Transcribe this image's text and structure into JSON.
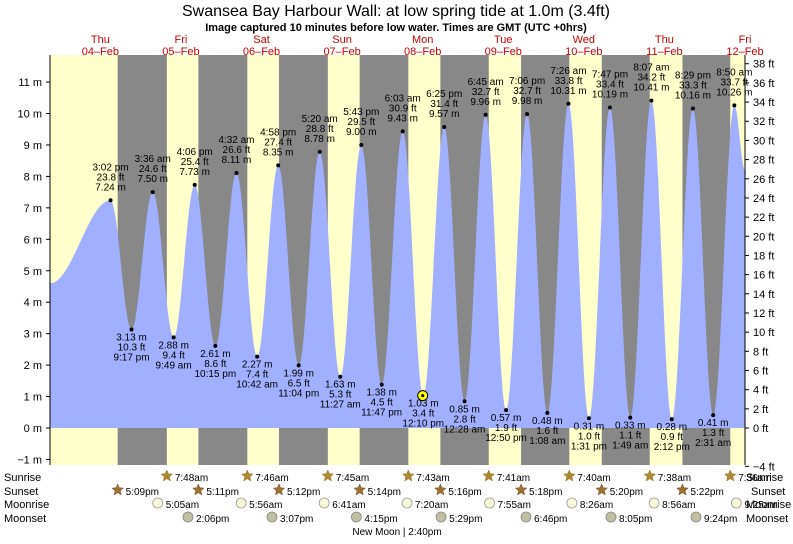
{
  "title": "Swansea Bay Harbour Wall: at low  spring tide at 1.0m (3.4ft)",
  "subtitle": "Image captured 10 minutes before low water. Times are GMT (UTC +0hrs)",
  "colors": {
    "day": "#ffffcc",
    "night": "#888888",
    "tide_fill": "#a0b0ff",
    "day_label": "#cc0000",
    "sun_icon": "#b08a30",
    "moon_icon": "#f8f8d8",
    "moonset_icon": "#c0c0a0"
  },
  "day_labels": [
    {
      "day": "Thu",
      "date": "04–Feb"
    },
    {
      "day": "Fri",
      "date": "05–Feb"
    },
    {
      "day": "Sat",
      "date": "06–Feb"
    },
    {
      "day": "Sun",
      "date": "07–Feb"
    },
    {
      "day": "Mon",
      "date": "08–Feb"
    },
    {
      "day": "Tue",
      "date": "09–Feb"
    },
    {
      "day": "Wed",
      "date": "10–Feb"
    },
    {
      "day": "Thu",
      "date": "11–Feb"
    },
    {
      "day": "Fri",
      "date": "12–Feb"
    }
  ],
  "row_labels": {
    "sunrise": "Sunrise",
    "sunset": "Sunset",
    "moonrise": "Moonrise",
    "moonset": "Moonset"
  },
  "moon_phase": "New Moon | 2:40pm",
  "chart_data": {
    "type": "area",
    "title": "Swansea Bay Harbour Wall: at low  spring tide at 1.0m (3.4ft)",
    "y_left": {
      "unit": "m",
      "ticks": [
        -1,
        0,
        1,
        2,
        3,
        4,
        5,
        6,
        7,
        8,
        9,
        10,
        11
      ],
      "tick_labels": [
        "−1 m",
        "0 m",
        "1 m",
        "2 m",
        "3 m",
        "4 m",
        "5 m",
        "6 m",
        "7 m",
        "8 m",
        "9 m",
        "10 m",
        "11 m"
      ]
    },
    "y_right": {
      "unit": "ft",
      "ticks": [
        -4,
        0,
        2,
        4,
        6,
        8,
        10,
        12,
        14,
        16,
        18,
        20,
        22,
        24,
        26,
        28,
        30,
        32,
        34,
        36,
        38
      ],
      "tick_labels": [
        "−4 ft",
        "0 ft",
        "2 ft",
        "4 ft",
        "6 ft",
        "8 ft",
        "10 ft",
        "12 ft",
        "14 ft",
        "16 ft",
        "18 ft",
        "20 ft",
        "22 ft",
        "24 ft",
        "26 ft",
        "28 ft",
        "30 ft",
        "32 ft",
        "34 ft",
        "36 ft",
        "38 ft"
      ]
    },
    "ylim_m": [
      -1.1,
      11.5
    ],
    "x_range_hours": [
      -3,
      204
    ],
    "start_height_m": 4.6,
    "end_height_m": 8.2,
    "tides": [
      {
        "type": "high",
        "t": 15.03,
        "m": 7.24,
        "ft": "23.8 ft",
        "m_label": "7.24 m",
        "time": "3:02 pm"
      },
      {
        "type": "low",
        "t": 21.28,
        "m": 3.13,
        "ft": "10.3 ft",
        "m_label": "3.13 m",
        "time": "9:17 pm"
      },
      {
        "type": "high",
        "t": 27.6,
        "m": 7.5,
        "ft": "24.6 ft",
        "m_label": "7.50 m",
        "time": "3:36 am"
      },
      {
        "type": "low",
        "t": 33.82,
        "m": 2.88,
        "ft": "9.4 ft",
        "m_label": "2.88 m",
        "time": "9:49 am"
      },
      {
        "type": "high",
        "t": 40.1,
        "m": 7.73,
        "ft": "25.4 ft",
        "m_label": "7.73 m",
        "time": "4:06 pm"
      },
      {
        "type": "low",
        "t": 46.25,
        "m": 2.61,
        "ft": "8.6 ft",
        "m_label": "2.61 m",
        "time": "10:15 pm"
      },
      {
        "type": "high",
        "t": 52.53,
        "m": 8.11,
        "ft": "26.6 ft",
        "m_label": "8.11 m",
        "time": "4:32 am"
      },
      {
        "type": "low",
        "t": 58.7,
        "m": 2.27,
        "ft": "7.4 ft",
        "m_label": "2.27 m",
        "time": "10:42 am"
      },
      {
        "type": "high",
        "t": 64.97,
        "m": 8.35,
        "ft": "27.4 ft",
        "m_label": "8.35 m",
        "time": "4:58 pm"
      },
      {
        "type": "low",
        "t": 71.07,
        "m": 1.99,
        "ft": "6.5 ft",
        "m_label": "1.99 m",
        "time": "11:04 pm"
      },
      {
        "type": "high",
        "t": 77.33,
        "m": 8.78,
        "ft": "28.8 ft",
        "m_label": "8.78 m",
        "time": "5:20 am"
      },
      {
        "type": "low",
        "t": 83.45,
        "m": 1.63,
        "ft": "5.3 ft",
        "m_label": "1.63 m",
        "time": "11:27 am"
      },
      {
        "type": "high",
        "t": 89.72,
        "m": 9.0,
        "ft": "29.5 ft",
        "m_label": "9.00 m",
        "time": "5:43 pm"
      },
      {
        "type": "low",
        "t": 95.78,
        "m": 1.38,
        "ft": "4.5 ft",
        "m_label": "1.38 m",
        "time": "11:47 pm"
      },
      {
        "type": "high",
        "t": 102.05,
        "m": 9.43,
        "ft": "30.9 ft",
        "m_label": "9.43 m",
        "time": "6:03 am"
      },
      {
        "type": "low",
        "t": 108.17,
        "m": 1.03,
        "ft": "3.4 ft",
        "m_label": "1.03 m",
        "time": "12:10 pm"
      },
      {
        "type": "high",
        "t": 114.42,
        "m": 9.57,
        "ft": "31.4 ft",
        "m_label": "9.57 m",
        "time": "6:25 pm"
      },
      {
        "type": "low",
        "t": 120.47,
        "m": 0.85,
        "ft": "2.8 ft",
        "m_label": "0.85 m",
        "time": "12:28 am"
      },
      {
        "type": "high",
        "t": 126.75,
        "m": 9.96,
        "ft": "32.7 ft",
        "m_label": "9.96 m",
        "time": "6:45 am"
      },
      {
        "type": "low",
        "t": 132.83,
        "m": 0.57,
        "ft": "1.9 ft",
        "m_label": "0.57 m",
        "time": "12:50 pm"
      },
      {
        "type": "high",
        "t": 139.1,
        "m": 9.98,
        "ft": "32.7 ft",
        "m_label": "9.98 m",
        "time": "7:06 pm"
      },
      {
        "type": "low",
        "t": 145.13,
        "m": 0.48,
        "ft": "1.6 ft",
        "m_label": "0.48 m",
        "time": "1:08 am"
      },
      {
        "type": "high",
        "t": 151.43,
        "m": 10.31,
        "ft": "33.8 ft",
        "m_label": "10.31 m",
        "time": "7:26 am"
      },
      {
        "type": "low",
        "t": 157.52,
        "m": 0.31,
        "ft": "1.0 ft",
        "m_label": "0.31 m",
        "time": "1:31 pm"
      },
      {
        "type": "high",
        "t": 163.78,
        "m": 10.19,
        "ft": "33.4 ft",
        "m_label": "10.19 m",
        "time": "7:47 pm"
      },
      {
        "type": "low",
        "t": 169.82,
        "m": 0.33,
        "ft": "1.1 ft",
        "m_label": "0.33 m",
        "time": "1:49 am"
      },
      {
        "type": "high",
        "t": 176.12,
        "m": 10.41,
        "ft": "34.2 ft",
        "m_label": "10.41 m",
        "time": "8:07 am"
      },
      {
        "type": "low",
        "t": 182.2,
        "m": 0.28,
        "ft": "0.9 ft",
        "m_label": "0.28 m",
        "time": "2:12 pm"
      },
      {
        "type": "high",
        "t": 188.48,
        "m": 10.16,
        "ft": "33.3 ft",
        "m_label": "10.16 m",
        "time": "8:29 pm"
      },
      {
        "type": "low",
        "t": 194.52,
        "m": 0.41,
        "ft": "1.3 ft",
        "m_label": "0.41 m",
        "time": "2:31 am"
      },
      {
        "type": "high",
        "t": 200.83,
        "m": 10.26,
        "ft": "33.7 ft",
        "m_label": "10.26 m",
        "time": "8:50 am"
      }
    ],
    "current": {
      "t": 108.0,
      "m": 1.03
    },
    "daylight": [
      {
        "rise_t": -3,
        "set_t": 17.15
      },
      {
        "rise_t": 31.8,
        "set_t": 41.18
      },
      {
        "rise_t": 55.77,
        "set_t": 65.2
      },
      {
        "rise_t": 79.75,
        "set_t": 89.23
      },
      {
        "rise_t": 103.72,
        "set_t": 113.27
      },
      {
        "rise_t": 127.68,
        "set_t": 137.3
      },
      {
        "rise_t": 151.67,
        "set_t": 161.33
      },
      {
        "rise_t": 175.63,
        "set_t": 185.37
      },
      {
        "rise_t": 199.6,
        "set_t": 204
      }
    ],
    "sunrise": [
      {
        "t": 31.8,
        "label": "7:48am"
      },
      {
        "t": 55.77,
        "label": "7:46am"
      },
      {
        "t": 79.75,
        "label": "7:45am"
      },
      {
        "t": 103.72,
        "label": "7:43am"
      },
      {
        "t": 127.68,
        "label": "7:41am"
      },
      {
        "t": 151.67,
        "label": "7:40am"
      },
      {
        "t": 175.63,
        "label": "7:38am"
      },
      {
        "t": 199.6,
        "label": "7:36am"
      }
    ],
    "sunset": [
      {
        "t": 17.15,
        "label": "5:09pm"
      },
      {
        "t": 41.18,
        "label": "5:11pm"
      },
      {
        "t": 65.2,
        "label": "5:12pm"
      },
      {
        "t": 89.23,
        "label": "5:14pm"
      },
      {
        "t": 113.27,
        "label": "5:16pm"
      },
      {
        "t": 137.3,
        "label": "5:18pm"
      },
      {
        "t": 161.33,
        "label": "5:20pm"
      },
      {
        "t": 185.37,
        "label": "5:22pm"
      }
    ],
    "moonrise": [
      {
        "t": 29.08,
        "label": "5:05am"
      },
      {
        "t": 53.93,
        "label": "5:56am"
      },
      {
        "t": 78.68,
        "label": "6:41am"
      },
      {
        "t": 103.33,
        "label": "7:20am"
      },
      {
        "t": 127.92,
        "label": "7:55am"
      },
      {
        "t": 152.43,
        "label": "8:26am"
      },
      {
        "t": 176.93,
        "label": "8:56am"
      },
      {
        "t": 201.42,
        "label": "9:25am"
      }
    ],
    "moonset": [
      {
        "t": 38.1,
        "label": "2:06pm"
      },
      {
        "t": 63.12,
        "label": "3:07pm"
      },
      {
        "t": 88.25,
        "label": "4:15pm"
      },
      {
        "t": 113.48,
        "label": "5:29pm"
      },
      {
        "t": 138.77,
        "label": "6:46pm"
      },
      {
        "t": 164.08,
        "label": "8:05pm"
      },
      {
        "t": 189.4,
        "label": "9:24pm"
      }
    ],
    "day_label_t": [
      12,
      36,
      60,
      84,
      108,
      132,
      156,
      180,
      204
    ]
  }
}
